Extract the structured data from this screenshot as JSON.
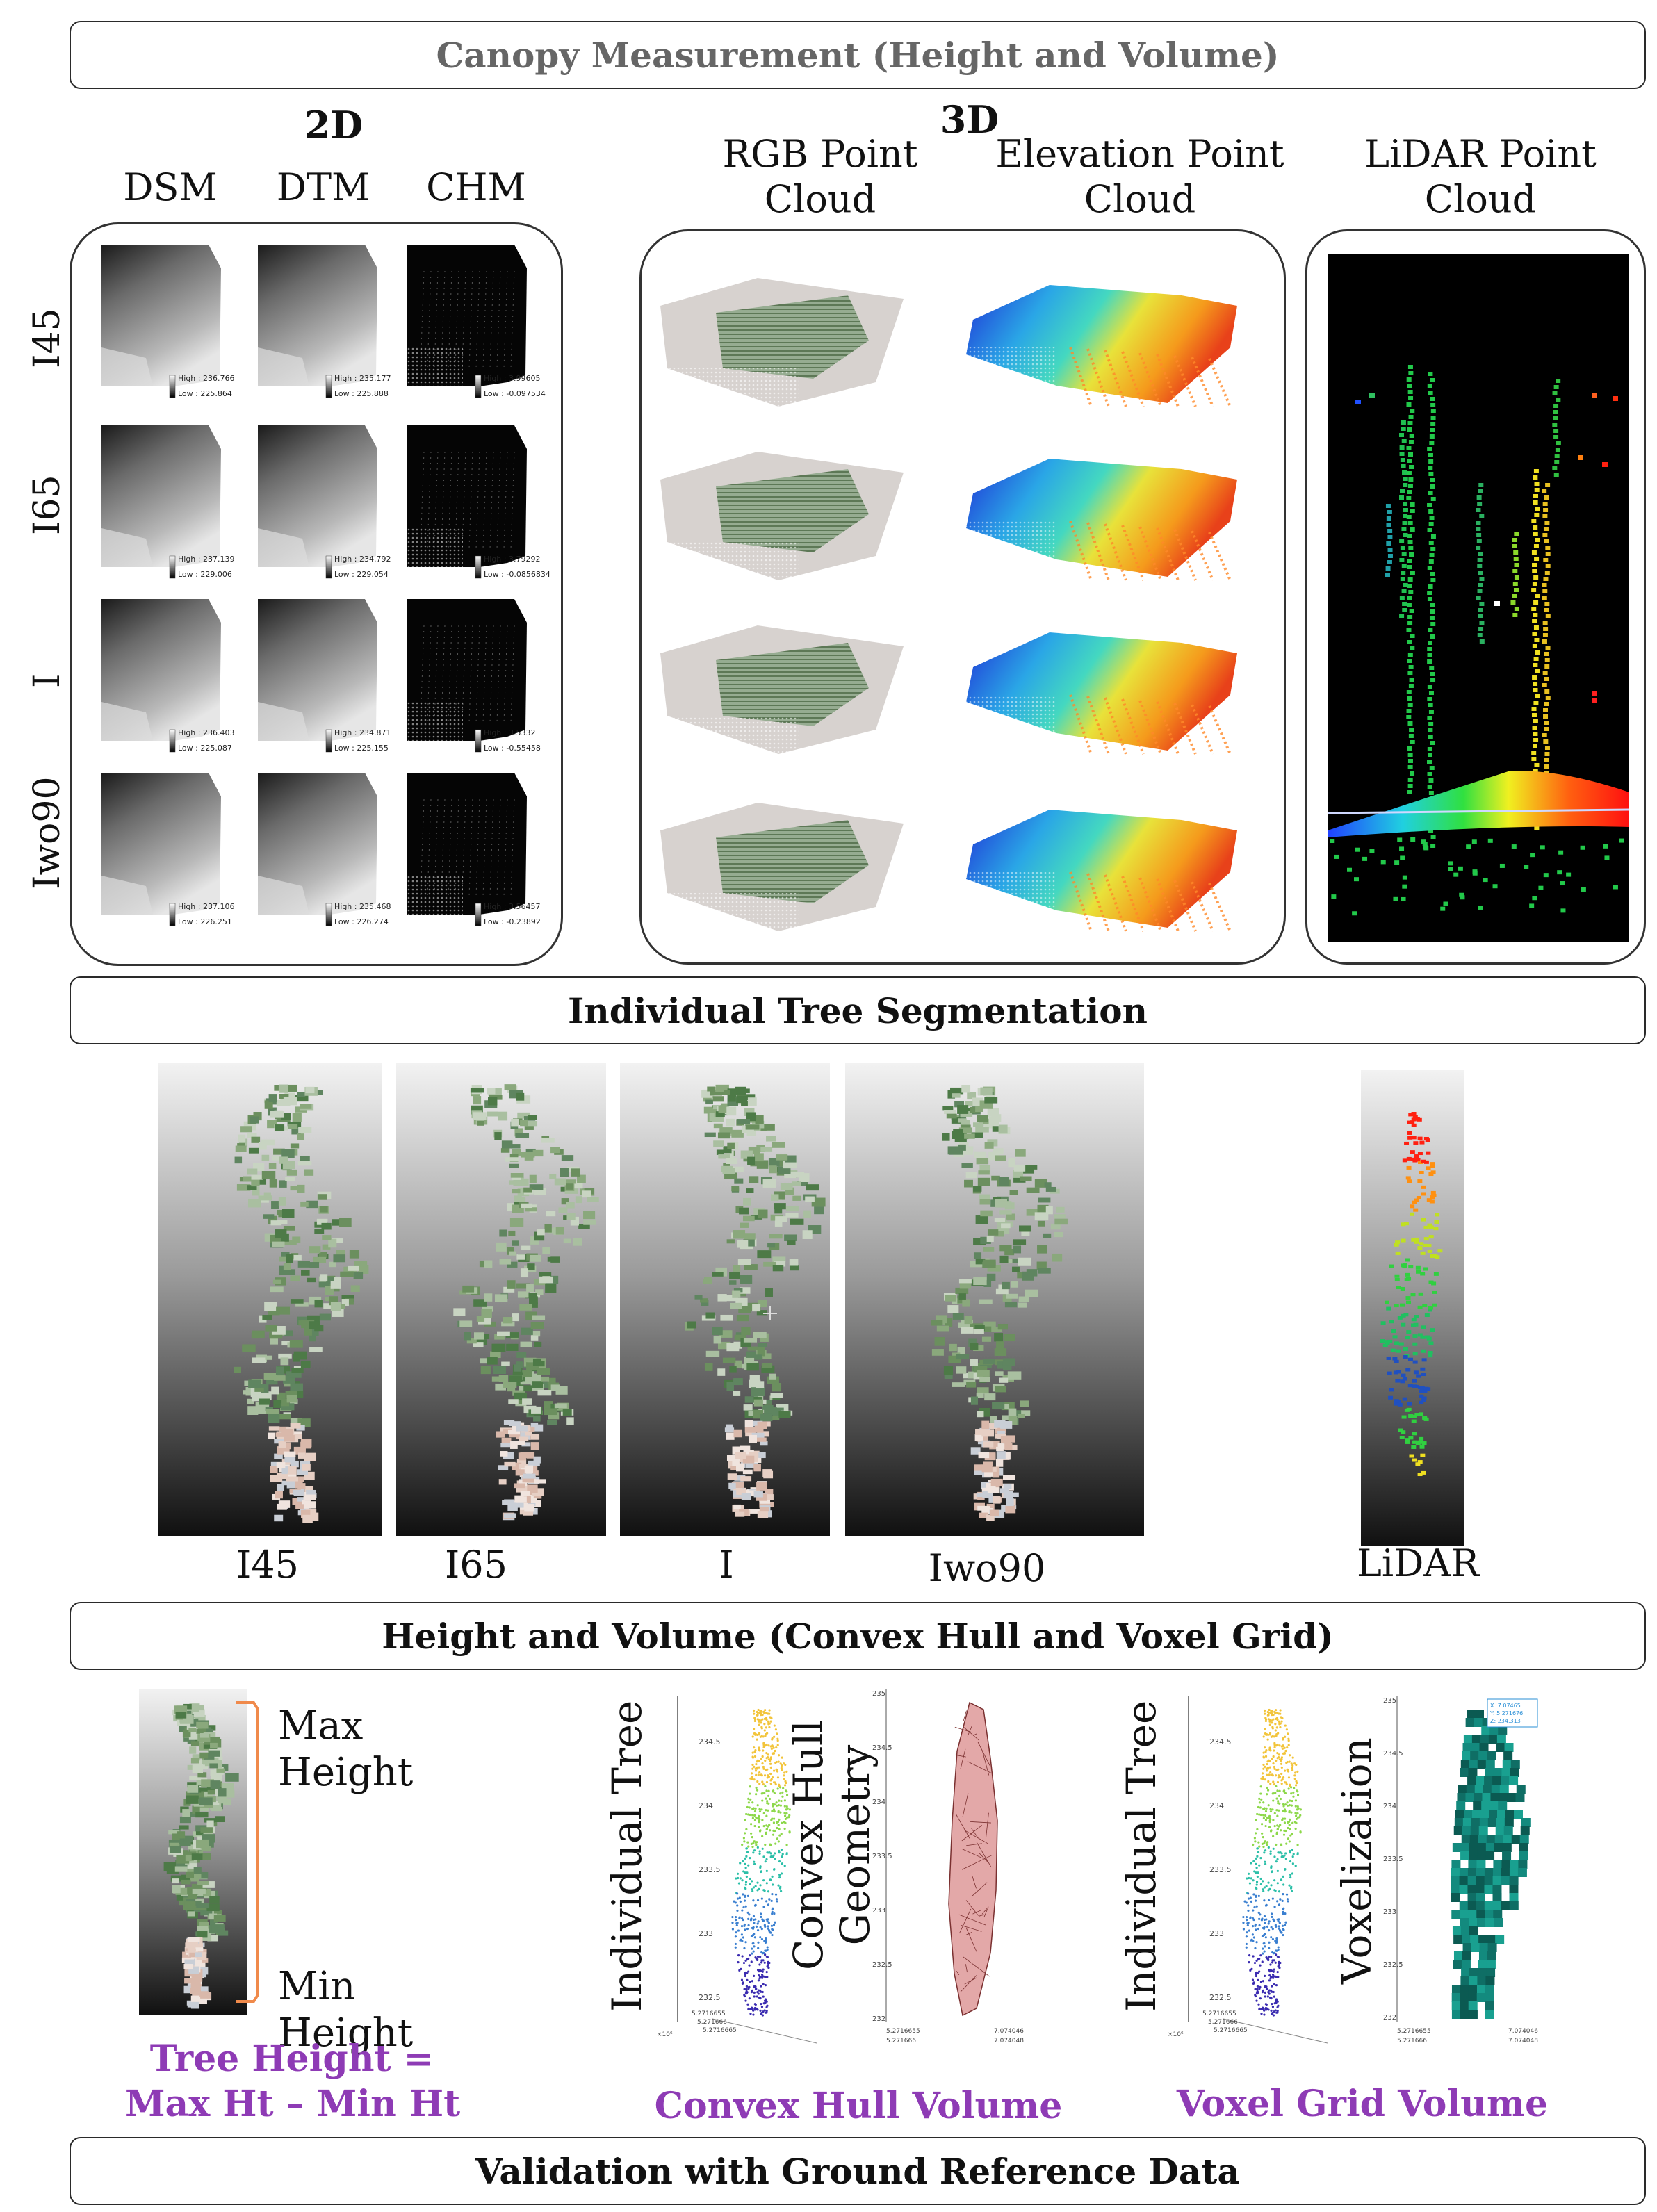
{
  "banners": {
    "canopy": "Canopy Measurement (Height and Volume)",
    "segmentation": "Individual Tree Segmentation",
    "height_volume": "Height and Volume (Convex Hull and Voxel Grid)",
    "validation": "Validation with Ground Reference Data"
  },
  "section_2d": {
    "title": "2D",
    "columns": [
      "DSM",
      "DTM",
      "CHM"
    ],
    "rows": [
      "I45",
      "I65",
      "I",
      "Iwo90"
    ],
    "legends": [
      [
        [
          "High : 236.766",
          "Low : 225.864"
        ],
        [
          "High : 235.177",
          "Low : 225.888"
        ],
        [
          "High : 3.99605",
          "Low : -0.097534"
        ]
      ],
      [
        [
          "High : 237.139",
          "Low : 229.006"
        ],
        [
          "High : 234.792",
          "Low : 229.054"
        ],
        [
          "High : 3.79292",
          "Low : -0.0856834"
        ]
      ],
      [
        [
          "High : 236.403",
          "Low : 225.087"
        ],
        [
          "High : 234.871",
          "Low : 225.155"
        ],
        [
          "High : 3.5332",
          "Low : -0.55458"
        ]
      ],
      [
        [
          "High : 237.106",
          "Low : 226.251"
        ],
        [
          "High : 235.468",
          "Low : 226.274"
        ],
        [
          "High : 3.56457",
          "Low : -0.23892"
        ]
      ]
    ]
  },
  "section_3d": {
    "title": "3D",
    "columns": [
      "RGB Point Cloud",
      "Elevation Point Cloud",
      "LiDAR Point Cloud"
    ]
  },
  "segmentation_labels": [
    "I45",
    "I65",
    "I",
    "Iwo90",
    "LiDAR"
  ],
  "height_section": {
    "max_label": "Max Height",
    "min_label": "Min Height",
    "formula_line1": "Tree Height =",
    "formula_line2": "Max Ht – Min Ht",
    "individual_tree": "Individual Tree",
    "convex_hull_geometry_line1": "Convex Hull",
    "convex_hull_geometry_line2": "Geometry",
    "voxelization": "Voxelization",
    "convex_hull_volume": "Convex Hull Volume",
    "voxel_grid_volume": "Voxel Grid Volume",
    "z_ticks": [
      "235",
      "234.5",
      "234",
      "233.5",
      "233",
      "232.5",
      "232"
    ],
    "z_ticks_tree": [
      "234.5",
      "234",
      "233.5",
      "233",
      "232.5"
    ],
    "exp_label": "×10⁶",
    "x_ticks": [
      "5.2716655",
      "5.271666",
      "5.2716665"
    ],
    "y_ticks": [
      "7.074046",
      "7.074048"
    ],
    "datatip": [
      "X: 7.07465",
      "Y: 5.271676",
      "Z: 234.313"
    ]
  },
  "colors": {
    "purple": "#8e3bb5",
    "orange_bracket": "#f08a4b",
    "voxel_teal": "#127a70",
    "hull_pink": "#e3a8a8"
  }
}
